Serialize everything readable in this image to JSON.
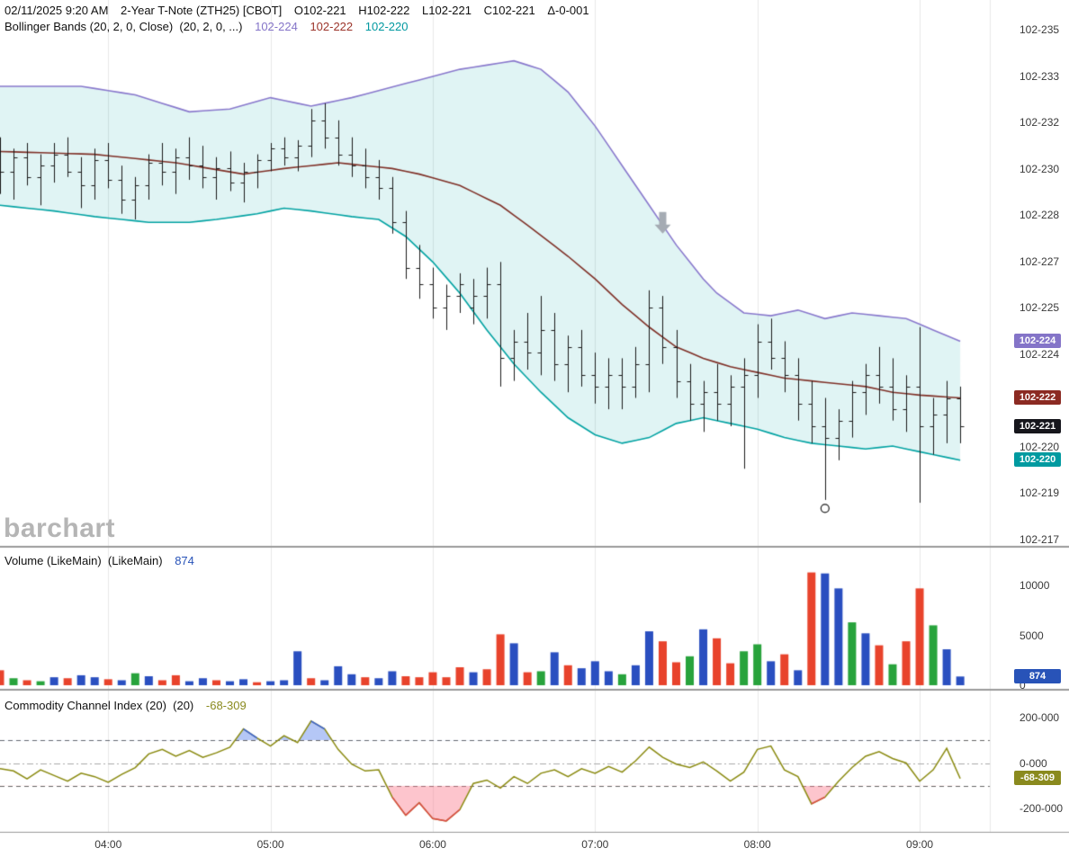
{
  "header": {
    "datetime": "02/11/2025 9:20 AM",
    "symbol": "2-Year T-Note (ZTH25) [CBOT]",
    "open": "O102-221",
    "high": "H102-222",
    "low": "L102-221",
    "close": "C102-221",
    "change": "Δ-0-001"
  },
  "bollinger_header": {
    "label": "Bollinger Bands (20, 2, 0, Close)  (20, 2, 0, ...)",
    "values": [
      {
        "text": "102-224",
        "color": "#8474c8"
      },
      {
        "text": "102-222",
        "color": "#9c342a"
      },
      {
        "text": "102-220",
        "color": "#0098a0"
      }
    ]
  },
  "volume_header": {
    "label": "Volume (LikeMain)  (LikeMain)",
    "value": "874",
    "color": "#2853b8"
  },
  "cci_header": {
    "label": "Commodity Channel Index (20)  (20)",
    "value": "-68-309",
    "color": "#8a8a1e"
  },
  "watermark": "barchart",
  "colors": {
    "grid": "#e8e8e8",
    "separator": "#9a9a9a",
    "bar": "#1a1a1a",
    "bb_upper": "#8878cc",
    "bb_mid": "#7e2f26",
    "bb_lower": "#00a2a2",
    "band_fill": "rgba(0,165,165,0.12)",
    "arrow": "#a5abb3",
    "vol": {
      "r": "#e8432c",
      "g": "#28a33c",
      "b": "#2a4fc0"
    },
    "cci_line": "#8a8a10",
    "cci_ob_line": "#3a62d8",
    "cci_os_line": "#e04848",
    "cci_ob_fill": "rgba(90,130,235,0.45)",
    "cci_os_fill": "rgba(250,110,130,0.40)"
  },
  "chart_data": {
    "type": "ohlc",
    "panels": [
      "price+bollinger-bands",
      "volume",
      "commodity-channel-index"
    ],
    "x_labels": [
      {
        "label": "04:00",
        "i": 8
      },
      {
        "label": "05:00",
        "i": 20
      },
      {
        "label": "06:00",
        "i": 32
      },
      {
        "label": "07:00",
        "i": 44
      },
      {
        "label": "08:00",
        "i": 56
      },
      {
        "label": "09:00",
        "i": 68
      }
    ],
    "bars": [
      [
        23.02,
        23.12,
        22.92,
        23.0
      ],
      [
        23.0,
        23.08,
        22.9,
        23.05
      ],
      [
        23.05,
        23.1,
        22.95,
        22.98
      ],
      [
        22.98,
        23.06,
        22.88,
        23.02
      ],
      [
        23.02,
        23.1,
        22.96,
        23.06
      ],
      [
        23.06,
        23.12,
        22.98,
        23.0
      ],
      [
        23.0,
        23.05,
        22.87,
        22.95
      ],
      [
        22.95,
        23.08,
        22.9,
        23.04
      ],
      [
        23.04,
        23.1,
        22.94,
        22.97
      ],
      [
        22.97,
        23.02,
        22.85,
        22.9
      ],
      [
        22.9,
        22.98,
        22.83,
        22.95
      ],
      [
        22.95,
        23.06,
        22.9,
        23.03
      ],
      [
        23.03,
        23.1,
        22.95,
        23.0
      ],
      [
        23.0,
        23.08,
        22.92,
        23.05
      ],
      [
        23.05,
        23.12,
        22.97,
        23.02
      ],
      [
        23.02,
        23.09,
        22.94,
        22.98
      ],
      [
        22.98,
        23.05,
        22.9,
        23.01
      ],
      [
        23.01,
        23.07,
        22.93,
        22.96
      ],
      [
        22.96,
        23.03,
        22.89,
        23.0
      ],
      [
        23.0,
        23.06,
        22.94,
        23.04
      ],
      [
        23.04,
        23.1,
        23.0,
        23.08
      ],
      [
        23.08,
        23.12,
        23.02,
        23.05
      ],
      [
        23.05,
        23.11,
        23.0,
        23.09
      ],
      [
        23.09,
        23.22,
        23.05,
        23.18
      ],
      [
        23.18,
        23.24,
        23.08,
        23.12
      ],
      [
        23.12,
        23.18,
        23.02,
        23.06
      ],
      [
        23.06,
        23.12,
        22.98,
        23.02
      ],
      [
        23.02,
        23.08,
        22.94,
        22.98
      ],
      [
        22.98,
        23.04,
        22.9,
        22.94
      ],
      [
        22.94,
        22.98,
        22.78,
        22.82
      ],
      [
        22.82,
        22.86,
        22.62,
        22.66
      ],
      [
        22.66,
        22.74,
        22.55,
        22.6
      ],
      [
        22.6,
        22.66,
        22.48,
        22.52
      ],
      [
        22.52,
        22.6,
        22.44,
        22.56
      ],
      [
        22.56,
        22.64,
        22.5,
        22.6
      ],
      [
        22.52,
        22.62,
        22.46,
        22.56
      ],
      [
        22.56,
        22.66,
        22.48,
        22.6
      ],
      [
        22.6,
        22.68,
        22.24,
        22.34
      ],
      [
        22.34,
        22.44,
        22.26,
        22.4
      ],
      [
        22.4,
        22.5,
        22.3,
        22.36
      ],
      [
        22.36,
        22.56,
        22.28,
        22.44
      ],
      [
        22.44,
        22.5,
        22.26,
        22.32
      ],
      [
        22.32,
        22.42,
        22.22,
        22.38
      ],
      [
        22.38,
        22.44,
        22.24,
        22.28
      ],
      [
        22.28,
        22.36,
        22.18,
        22.24
      ],
      [
        22.24,
        22.34,
        22.16,
        22.28
      ],
      [
        22.28,
        22.34,
        22.16,
        22.24
      ],
      [
        22.24,
        22.38,
        22.2,
        22.32
      ],
      [
        22.32,
        22.58,
        22.22,
        22.52
      ],
      [
        22.52,
        22.56,
        22.32,
        22.38
      ],
      [
        22.38,
        22.44,
        22.2,
        22.26
      ],
      [
        22.26,
        22.32,
        22.12,
        22.18
      ],
      [
        22.18,
        22.26,
        22.08,
        22.22
      ],
      [
        22.22,
        22.32,
        22.12,
        22.18
      ],
      [
        22.18,
        22.28,
        22.1,
        22.24
      ],
      [
        22.24,
        22.34,
        21.95,
        22.28
      ],
      [
        22.28,
        22.46,
        22.2,
        22.4
      ],
      [
        22.4,
        22.48,
        22.3,
        22.34
      ],
      [
        22.34,
        22.4,
        22.22,
        22.28
      ],
      [
        22.28,
        22.34,
        22.12,
        22.18
      ],
      [
        22.18,
        22.26,
        22.04,
        22.1
      ],
      [
        22.1,
        22.2,
        21.84,
        22.06
      ],
      [
        22.06,
        22.16,
        21.98,
        22.12
      ],
      [
        22.12,
        22.26,
        22.06,
        22.22
      ],
      [
        22.22,
        22.32,
        22.14,
        22.28
      ],
      [
        22.28,
        22.38,
        22.18,
        22.24
      ],
      [
        22.24,
        22.34,
        22.12,
        22.16
      ],
      [
        22.16,
        22.28,
        22.08,
        22.24
      ],
      [
        22.24,
        22.45,
        21.83,
        22.1
      ],
      [
        22.1,
        22.2,
        22.0,
        22.14
      ],
      [
        22.14,
        22.26,
        22.04,
        22.2
      ],
      [
        22.2,
        22.24,
        22.04,
        22.1
      ]
    ],
    "bands": {
      "upper": [
        [
          0,
          23.3
        ],
        [
          6,
          23.3
        ],
        [
          10,
          23.27
        ],
        [
          14,
          23.21
        ],
        [
          17,
          23.22
        ],
        [
          20,
          23.26
        ],
        [
          23,
          23.23
        ],
        [
          26,
          23.26
        ],
        [
          30,
          23.31
        ],
        [
          34,
          23.36
        ],
        [
          38,
          23.39
        ],
        [
          40,
          23.36
        ],
        [
          42,
          23.28
        ],
        [
          44,
          23.16
        ],
        [
          46,
          23.02
        ],
        [
          48,
          22.88
        ],
        [
          50,
          22.74
        ],
        [
          52,
          22.62
        ],
        [
          53,
          22.57
        ],
        [
          55,
          22.5
        ],
        [
          57,
          22.49
        ],
        [
          59,
          22.51
        ],
        [
          61,
          22.48
        ],
        [
          63,
          22.5
        ],
        [
          65,
          22.49
        ],
        [
          67,
          22.48
        ],
        [
          69,
          22.44
        ],
        [
          71,
          22.4
        ]
      ],
      "mid": [
        [
          0,
          23.07
        ],
        [
          7,
          23.06
        ],
        [
          13,
          23.03
        ],
        [
          18,
          22.99
        ],
        [
          21,
          23.01
        ],
        [
          25,
          23.03
        ],
        [
          29,
          23.01
        ],
        [
          31,
          22.99
        ],
        [
          34,
          22.95
        ],
        [
          37,
          22.88
        ],
        [
          39,
          22.81
        ],
        [
          42,
          22.7
        ],
        [
          44,
          22.62
        ],
        [
          46,
          22.53
        ],
        [
          48,
          22.45
        ],
        [
          50,
          22.38
        ],
        [
          52,
          22.34
        ],
        [
          54,
          22.31
        ],
        [
          56,
          22.29
        ],
        [
          58,
          22.27
        ],
        [
          60,
          22.26
        ],
        [
          62,
          22.25
        ],
        [
          64,
          22.24
        ],
        [
          66,
          22.22
        ],
        [
          68,
          22.21
        ],
        [
          71,
          22.2
        ]
      ],
      "lower": [
        [
          0,
          22.88
        ],
        [
          4,
          22.86
        ],
        [
          7,
          22.84
        ],
        [
          11,
          22.82
        ],
        [
          14,
          22.82
        ],
        [
          16,
          22.83
        ],
        [
          19,
          22.85
        ],
        [
          21,
          22.87
        ],
        [
          23,
          22.86
        ],
        [
          26,
          22.84
        ],
        [
          28,
          22.83
        ],
        [
          30,
          22.77
        ],
        [
          32,
          22.68
        ],
        [
          34,
          22.57
        ],
        [
          36,
          22.44
        ],
        [
          38,
          22.32
        ],
        [
          40,
          22.22
        ],
        [
          42,
          22.13
        ],
        [
          44,
          22.07
        ],
        [
          46,
          22.04
        ],
        [
          48,
          22.06
        ],
        [
          50,
          22.11
        ],
        [
          52,
          22.13
        ],
        [
          54,
          22.11
        ],
        [
          56,
          22.09
        ],
        [
          58,
          22.06
        ],
        [
          60,
          22.04
        ],
        [
          62,
          22.03
        ],
        [
          64,
          22.02
        ],
        [
          66,
          22.03
        ],
        [
          68,
          22.01
        ],
        [
          70,
          21.99
        ],
        [
          71,
          21.98
        ]
      ]
    },
    "volume": {
      "values": [
        1500,
        700,
        500,
        400,
        800,
        700,
        1000,
        800,
        600,
        500,
        1200,
        900,
        500,
        1000,
        400,
        700,
        500,
        400,
        600,
        300,
        400,
        500,
        3400,
        700,
        500,
        1900,
        1100,
        800,
        700,
        1400,
        900,
        800,
        1300,
        800,
        1800,
        1300,
        1600,
        5100,
        4200,
        1300,
        1400,
        3300,
        2000,
        1700,
        2400,
        1400,
        1100,
        2000,
        5400,
        4400,
        2300,
        2900,
        5600,
        4700,
        2200,
        3400,
        4100,
        2400,
        3100,
        1500,
        11300,
        11200,
        9700,
        6300,
        5200,
        4000,
        2100,
        4400,
        9700,
        6000,
        3600,
        874
      ],
      "colors": [
        "r",
        "g",
        "r",
        "g",
        "b",
        "r",
        "b",
        "b",
        "r",
        "b",
        "g",
        "b",
        "r",
        "r",
        "b",
        "b",
        "r",
        "b",
        "b",
        "r",
        "b",
        "b",
        "b",
        "r",
        "b",
        "b",
        "b",
        "r",
        "b",
        "b",
        "r",
        "r",
        "r",
        "r",
        "r",
        "b",
        "r",
        "r",
        "b",
        "r",
        "g",
        "b",
        "r",
        "b",
        "b",
        "b",
        "g",
        "b",
        "b",
        "r",
        "r",
        "g",
        "b",
        "r",
        "r",
        "g",
        "g",
        "b",
        "r",
        "b",
        "r",
        "b",
        "b",
        "g",
        "b",
        "r",
        "g",
        "r",
        "r",
        "g",
        "b",
        "b"
      ]
    },
    "cci": {
      "overbought": 100,
      "oversold": -100,
      "values": [
        -25,
        -35,
        -70,
        -30,
        -55,
        -80,
        -45,
        -60,
        -85,
        -50,
        -20,
        40,
        60,
        30,
        55,
        25,
        45,
        70,
        150,
        110,
        75,
        120,
        90,
        185,
        150,
        60,
        -5,
        -35,
        -30,
        -150,
        -230,
        -175,
        -245,
        -255,
        -205,
        -90,
        -75,
        -110,
        -60,
        -90,
        -45,
        -30,
        -60,
        -25,
        -45,
        -15,
        -40,
        10,
        70,
        25,
        -5,
        -20,
        5,
        -35,
        -80,
        -40,
        60,
        75,
        -30,
        -60,
        -180,
        -150,
        -80,
        -20,
        30,
        50,
        20,
        0,
        -80,
        -30,
        65,
        -68.3
      ]
    },
    "annotations": {
      "down_arrow": {
        "i": 49,
        "v": 22.78
      },
      "circle": {
        "i": 61,
        "v": 21.81
      }
    },
    "y_axis": {
      "main": [
        {
          "label": "102-235",
          "v": 23.5
        },
        {
          "label": "102-233",
          "v": 23.3364
        },
        {
          "label": "102-232",
          "v": 23.1727
        },
        {
          "label": "102-230",
          "v": 23.0091
        },
        {
          "label": "102-228",
          "v": 22.8455
        },
        {
          "label": "102-227",
          "v": 22.6818
        },
        {
          "label": "102-225",
          "v": 22.5182
        },
        {
          "label": "102-224",
          "v": 22.3545
        },
        {
          "label": "102-222",
          "v": 22.1909
        },
        {
          "label": "102-220",
          "v": 22.0273
        },
        {
          "label": "102-219",
          "v": 21.8636
        },
        {
          "label": "102-217",
          "v": 21.7
        }
      ],
      "volume": [
        {
          "label": "10000",
          "v": 10000
        },
        {
          "label": "5000",
          "v": 5000
        },
        {
          "label": "0",
          "v": 0
        }
      ],
      "cci": [
        {
          "label": "200-000",
          "v": 200
        },
        {
          "label": "0-000",
          "v": 0
        },
        {
          "label": "-200-000",
          "v": -200
        }
      ],
      "ranges": {
        "main": [
          21.68,
          23.6
        ],
        "volume": [
          0,
          13800
        ],
        "cci": [
          -300,
          300
        ]
      }
    },
    "badges": {
      "main": [
        {
          "name": "bb-upper",
          "text": "102-224",
          "v": 22.4,
          "color": "#8474c8"
        },
        {
          "name": "bb-mid",
          "text": "102-222",
          "v": 22.2,
          "color": "#8b2a22"
        },
        {
          "name": "last-price",
          "text": "102-221",
          "v": 22.1,
          "color": "#16161c"
        },
        {
          "name": "bb-lower",
          "text": "102-220",
          "v": 21.98,
          "color": "#009aa0"
        }
      ],
      "volume": {
        "name": "volume-last",
        "text": "874",
        "v": 874,
        "color": "#2853b8"
      },
      "cci": {
        "name": "cci-last",
        "text": "-68-309",
        "v": -68.3,
        "color": "#8a8a1e"
      }
    }
  }
}
